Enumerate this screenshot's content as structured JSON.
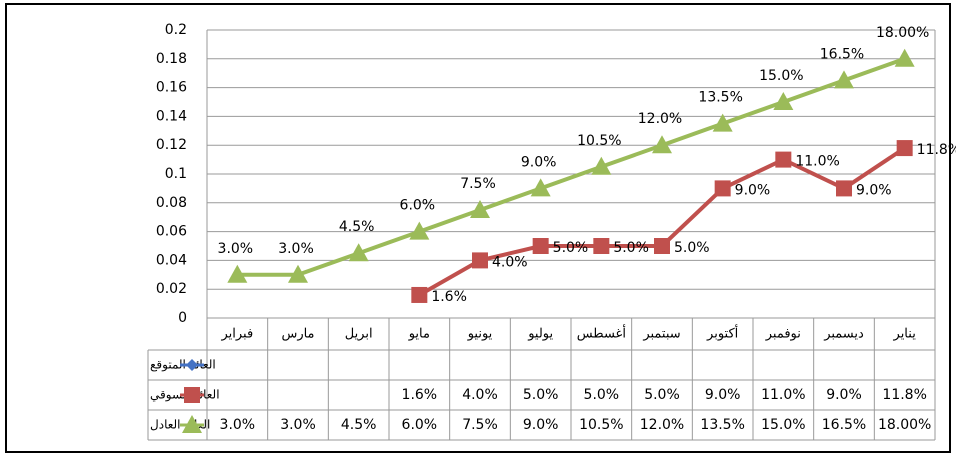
{
  "chart_data": {
    "type": "line",
    "categories": [
      "فبراير",
      "مارس",
      "ابريل",
      "مايو",
      "يونيو",
      "يوليو",
      "أغسطس",
      "سبتمبر",
      "أكتوبر",
      "نوفمبر",
      "ديسمبر",
      "يناير"
    ],
    "series": [
      {
        "name": "العائد المتوقع",
        "color": "#4472c4",
        "marker": "diamond",
        "values": [
          null,
          null,
          null,
          null,
          null,
          null,
          null,
          null,
          null,
          null,
          null,
          null
        ]
      },
      {
        "name": "العائد السوقي",
        "color": "#c0504d",
        "marker": "square",
        "values": [
          null,
          null,
          null,
          0.016,
          0.04,
          0.05,
          0.05,
          0.05,
          0.09,
          0.11,
          0.09,
          0.118
        ],
        "value_labels": [
          null,
          null,
          null,
          "1.6%",
          "4.0%",
          "5.0%",
          "5.0%",
          "5.0%",
          "9.0%",
          "11.0%",
          "9.0%",
          "11.8%"
        ]
      },
      {
        "name": "العائد العادل",
        "color": "#9bbb59",
        "marker": "triangle",
        "values": [
          0.03,
          0.03,
          0.045,
          0.06,
          0.075,
          0.09,
          0.105,
          0.12,
          0.135,
          0.15,
          0.165,
          0.18
        ],
        "value_labels": [
          "3.0%",
          "3.0%",
          "4.5%",
          "6.0%",
          "7.5%",
          "9.0%",
          "10.5%",
          "12.0%",
          "13.5%",
          "15.0%",
          "16.5%",
          "18.00%"
        ]
      }
    ],
    "ylim": [
      0,
      0.2
    ],
    "yticks": [
      0,
      0.02,
      0.04,
      0.06,
      0.08,
      0.1,
      0.12,
      0.14,
      0.16,
      0.18,
      0.2
    ],
    "grid": true,
    "data_table": true
  }
}
